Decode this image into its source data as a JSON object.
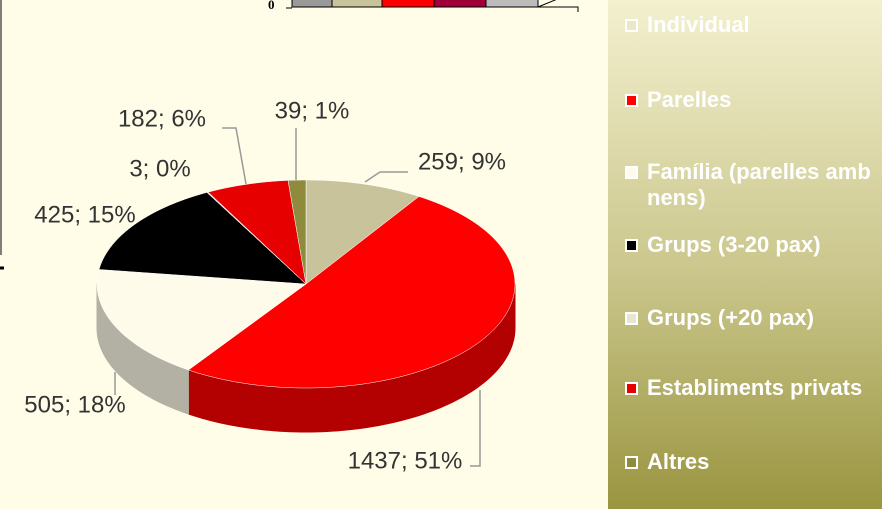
{
  "partial_chart": {
    "ytick_label": "0"
  },
  "chart_data": {
    "type": "pie3d",
    "categories": [
      "Individual",
      "Parelles",
      "Família (parelles amb nens)",
      "Grups (3-20 pax)",
      "Grups (+20 pax)",
      "Establiments privats",
      "Altres"
    ],
    "values": [
      259,
      1437,
      505,
      425,
      3,
      182,
      39
    ],
    "value_labels": [
      "259; 9%",
      "1437; 51%",
      "505; 18%",
      "425; 15%",
      "3; 0%",
      "182; 6%",
      "39; 1%"
    ],
    "colors": [
      "#c9c39c",
      "#ff0000",
      "#fffbea",
      "#000000",
      "#d9d9d9",
      "#e60000",
      "#8f8b3c"
    ],
    "legend": "right"
  }
}
